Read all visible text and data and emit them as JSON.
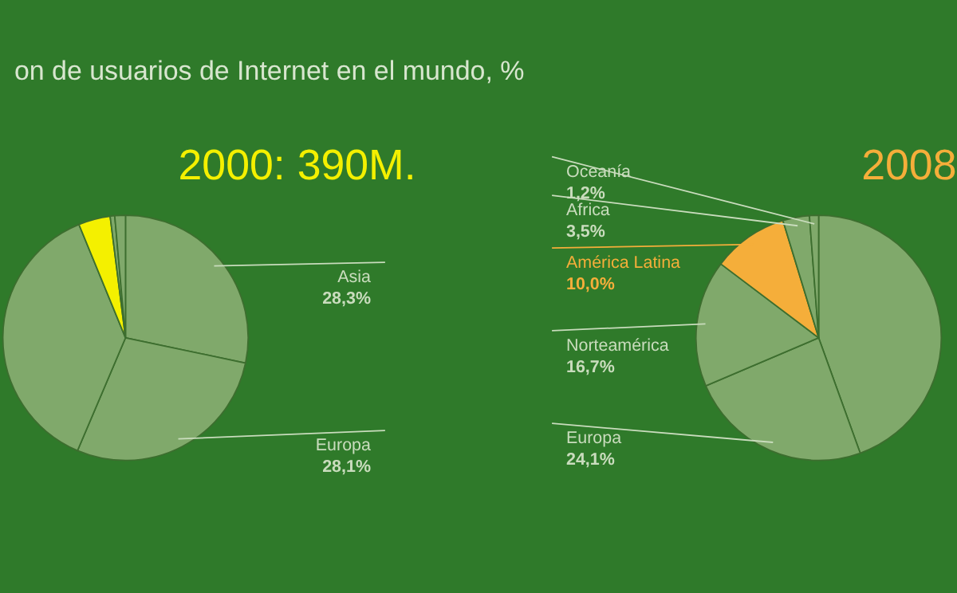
{
  "chart_data": [
    {
      "type": "pie",
      "title": "on de usuarios de Internet en el mundo, %",
      "subtitle": "2000: 390M.",
      "categories": [
        "Asia",
        "Europa",
        null,
        null,
        null,
        null
      ],
      "values": [
        28.3,
        28.1,
        37.4,
        4.2,
        0.6,
        1.4
      ],
      "value_labels": [
        "28,3%",
        "28,1%",
        null,
        null,
        null,
        null
      ],
      "colors": [
        "#80a96b",
        "#80a96b",
        "#80a96b",
        "#f4f000",
        "#80a96b",
        "#80a96b"
      ]
    },
    {
      "type": "pie",
      "subtitle": "2008",
      "categories": [
        null,
        "Europa",
        "Norteamérica",
        "América Latina",
        "Africa",
        "Oceanía"
      ],
      "values": [
        44.5,
        24.1,
        16.7,
        10.0,
        3.5,
        1.2
      ],
      "value_labels": [
        null,
        "24,1%",
        "16,7%",
        "10,0%",
        "3,5%",
        "1,2%"
      ],
      "colors": [
        "#80a96b",
        "#80a96b",
        "#80a96b",
        "#f5ae3a",
        "#80a96b",
        "#80a96b"
      ]
    }
  ]
}
